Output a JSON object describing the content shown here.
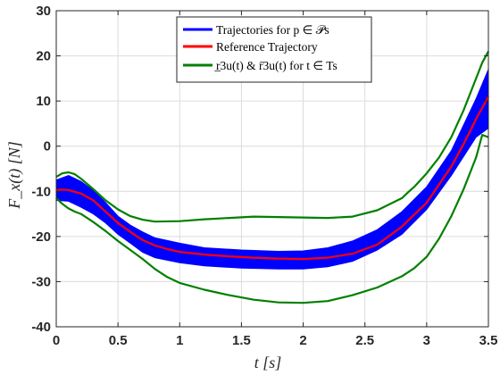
{
  "chart_data": {
    "type": "line",
    "xlabel": "t [s]",
    "ylabel": "F_x(t) [N]",
    "xlim": [
      0,
      3.5
    ],
    "ylim": [
      -40,
      30
    ],
    "grid": true,
    "legend_placement": "top-center",
    "x_ticks": [
      "0",
      "0.5",
      "1",
      "1.5",
      "2",
      "2.5",
      "3",
      "3.5"
    ],
    "y_ticks": [
      "-40",
      "-30",
      "-20",
      "-10",
      "0",
      "10",
      "20",
      "30"
    ],
    "legend": [
      {
        "label": "Trajectories for p ∈ 𝒫s",
        "color": "#0000ff"
      },
      {
        "label": "Reference Trajectory",
        "color": "#ff0000"
      },
      {
        "label": "r̲3u(t) & r̄3u(t) for t ∈ Ts",
        "color": "#008000"
      }
    ],
    "series": [
      {
        "name": "Trajectories for p ∈ 𝒫s",
        "kind": "band",
        "color": "#0000ff",
        "x": [
          0.0,
          0.1,
          0.2,
          0.3,
          0.4,
          0.5,
          0.6,
          0.7,
          0.8,
          1.0,
          1.2,
          1.5,
          1.8,
          2.0,
          2.2,
          2.4,
          2.6,
          2.8,
          3.0,
          3.2,
          3.4,
          3.5
        ],
        "upper": [
          -7.5,
          -6.5,
          -7.8,
          -9.8,
          -12.5,
          -15.5,
          -17.5,
          -19.0,
          -20.3,
          -21.5,
          -22.5,
          -23.0,
          -23.3,
          -23.2,
          -22.5,
          -21.0,
          -18.5,
          -14.5,
          -9.0,
          -1.0,
          10.5,
          17.0
        ],
        "lower": [
          -12.0,
          -12.2,
          -13.5,
          -15.0,
          -17.0,
          -19.5,
          -21.5,
          -23.5,
          -24.7,
          -25.8,
          -26.5,
          -27.0,
          -27.2,
          -27.2,
          -26.7,
          -25.5,
          -23.0,
          -19.5,
          -14.0,
          -6.5,
          2.0,
          4.0
        ]
      },
      {
        "name": "Reference Trajectory",
        "kind": "line",
        "color": "#ff0000",
        "x": [
          0.0,
          0.05,
          0.1,
          0.2,
          0.3,
          0.4,
          0.5,
          0.6,
          0.7,
          0.8,
          0.9,
          1.0,
          1.2,
          1.4,
          1.6,
          1.8,
          2.0,
          2.2,
          2.4,
          2.6,
          2.8,
          3.0,
          3.1,
          3.2,
          3.3,
          3.4,
          3.5
        ],
        "y": [
          -9.7,
          -9.6,
          -9.7,
          -10.5,
          -12.0,
          -14.5,
          -17.0,
          -19.0,
          -20.8,
          -22.0,
          -22.8,
          -23.4,
          -24.0,
          -24.4,
          -24.7,
          -24.9,
          -25.0,
          -24.7,
          -23.8,
          -21.8,
          -17.8,
          -12.5,
          -8.5,
          -4.5,
          0.5,
          6.0,
          11.0
        ]
      },
      {
        "name": "upper bound",
        "kind": "line",
        "color": "#008000",
        "x": [
          0.0,
          0.05,
          0.1,
          0.15,
          0.2,
          0.3,
          0.4,
          0.5,
          0.6,
          0.7,
          0.8,
          1.0,
          1.2,
          1.4,
          1.6,
          1.8,
          2.0,
          2.2,
          2.4,
          2.6,
          2.8,
          2.85,
          2.9,
          3.0,
          3.1,
          3.2,
          3.3,
          3.4,
          3.45,
          3.5
        ],
        "y": [
          -6.8,
          -6.0,
          -5.8,
          -6.2,
          -7.2,
          -9.5,
          -12.0,
          -14.0,
          -15.5,
          -16.3,
          -16.7,
          -16.6,
          -16.2,
          -15.9,
          -15.6,
          -15.7,
          -15.8,
          -15.9,
          -15.6,
          -14.2,
          -11.5,
          -10.2,
          -9.0,
          -6.0,
          -2.5,
          2.0,
          8.0,
          15.0,
          18.5,
          21.0
        ]
      },
      {
        "name": "lower bound",
        "kind": "line",
        "color": "#008000",
        "x": [
          0.0,
          0.05,
          0.1,
          0.15,
          0.2,
          0.3,
          0.4,
          0.5,
          0.6,
          0.7,
          0.8,
          0.9,
          1.0,
          1.2,
          1.4,
          1.6,
          1.8,
          2.0,
          2.2,
          2.4,
          2.6,
          2.8,
          2.9,
          3.0,
          3.1,
          3.2,
          3.3,
          3.4,
          3.45,
          3.5
        ],
        "y": [
          -11.5,
          -12.8,
          -13.8,
          -14.5,
          -15.0,
          -16.8,
          -18.8,
          -21.0,
          -23.0,
          -25.0,
          -27.2,
          -29.0,
          -30.3,
          -31.8,
          -33.0,
          -34.0,
          -34.6,
          -34.7,
          -34.3,
          -33.0,
          -31.3,
          -28.8,
          -27.0,
          -24.5,
          -20.5,
          -15.5,
          -9.5,
          -2.5,
          2.5,
          2.0
        ]
      }
    ]
  }
}
